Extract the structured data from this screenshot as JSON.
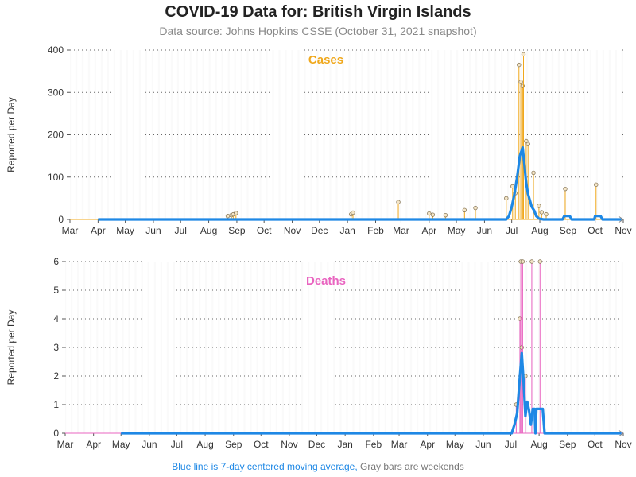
{
  "header": {
    "title": "COVID-19 Data for: British Virgin Islands",
    "subtitle": "Data source: Johns Hopkins CSSE (October 31, 2021 snapshot)"
  },
  "footnote": {
    "blue_text": "Blue line is 7-day centered moving average,",
    "gray_text": "Gray bars are weekends"
  },
  "colors": {
    "cases": "#f0a81c",
    "deaths": "#e964c0",
    "moving_average": "#1e88e5",
    "grid": "#666666"
  },
  "chart_data": [
    {
      "type": "line",
      "title": "Cases",
      "ylabel": "Reported per Day",
      "xlabel": "",
      "x_tick_labels": [
        "Mar",
        "Apr",
        "May",
        "Jun",
        "Jul",
        "Aug",
        "Sep",
        "Oct",
        "Nov",
        "Dec",
        "Jan",
        "Feb",
        "Mar",
        "Apr",
        "May",
        "Jun",
        "Jul",
        "Aug",
        "Sep",
        "Oct",
        "Nov"
      ],
      "y_ticks": [
        0,
        100,
        200,
        300,
        400
      ],
      "xlim": [
        "2020-03-01",
        "2021-11-01"
      ],
      "ylim": [
        0,
        400
      ],
      "grid": "horizontal dotted",
      "series": [
        {
          "kind": "daily",
          "points": [
            [
              "2020-08-22",
              8
            ],
            [
              "2020-08-26",
              10
            ],
            [
              "2020-08-28",
              12
            ],
            [
              "2020-08-31",
              15
            ],
            [
              "2021-01-05",
              12
            ],
            [
              "2021-01-07",
              16
            ],
            [
              "2021-02-26",
              41
            ],
            [
              "2021-04-01",
              14
            ],
            [
              "2021-04-05",
              11
            ],
            [
              "2021-04-19",
              10
            ],
            [
              "2021-05-10",
              22
            ],
            [
              "2021-05-22",
              27
            ],
            [
              "2021-06-25",
              50
            ],
            [
              "2021-07-02",
              78
            ],
            [
              "2021-07-05",
              62
            ],
            [
              "2021-07-09",
              365
            ],
            [
              "2021-07-11",
              325
            ],
            [
              "2021-07-13",
              315
            ],
            [
              "2021-07-14",
              390
            ],
            [
              "2021-07-17",
              185
            ],
            [
              "2021-07-19",
              178
            ],
            [
              "2021-07-25",
              110
            ],
            [
              "2021-07-31",
              32
            ],
            [
              "2021-08-03",
              17
            ],
            [
              "2021-08-08",
              12
            ],
            [
              "2021-08-29",
              72
            ],
            [
              "2021-10-02",
              82
            ]
          ]
        },
        {
          "kind": "moving_average",
          "points": [
            [
              "2020-04-01",
              0
            ],
            [
              "2021-06-25",
              0
            ],
            [
              "2021-06-28",
              8
            ],
            [
              "2021-07-01",
              30
            ],
            [
              "2021-07-04",
              60
            ],
            [
              "2021-07-07",
              100
            ],
            [
              "2021-07-10",
              150
            ],
            [
              "2021-07-13",
              170
            ],
            [
              "2021-07-15",
              130
            ],
            [
              "2021-07-17",
              85
            ],
            [
              "2021-07-19",
              60
            ],
            [
              "2021-07-21",
              45
            ],
            [
              "2021-07-23",
              30
            ],
            [
              "2021-07-26",
              20
            ],
            [
              "2021-07-28",
              8
            ],
            [
              "2021-07-31",
              2
            ],
            [
              "2021-08-05",
              0
            ],
            [
              "2021-08-26",
              0
            ],
            [
              "2021-08-28",
              8
            ],
            [
              "2021-09-03",
              8
            ],
            [
              "2021-09-05",
              0
            ],
            [
              "2021-09-30",
              0
            ],
            [
              "2021-10-01",
              8
            ],
            [
              "2021-10-07",
              8
            ],
            [
              "2021-10-09",
              0
            ],
            [
              "2021-10-30",
              0
            ]
          ]
        }
      ]
    },
    {
      "type": "line",
      "title": "Deaths",
      "ylabel": "Reported per Day",
      "xlabel": "",
      "x_tick_labels": [
        "Mar",
        "Apr",
        "May",
        "Jun",
        "Jul",
        "Aug",
        "Sep",
        "Oct",
        "Nov",
        "Dec",
        "Jan",
        "Feb",
        "Mar",
        "Apr",
        "May",
        "Jun",
        "Jul",
        "Aug",
        "Sep",
        "Oct",
        "Nov"
      ],
      "y_ticks": [
        0,
        1,
        2,
        3,
        4,
        5,
        6
      ],
      "xlim": [
        "2020-03-01",
        "2021-11-01"
      ],
      "ylim": [
        0,
        6
      ],
      "grid": "horizontal dotted",
      "series": [
        {
          "kind": "daily",
          "points": [
            [
              "2021-07-07",
              1
            ],
            [
              "2021-07-11",
              4
            ],
            [
              "2021-07-12",
              6
            ],
            [
              "2021-07-13",
              3
            ],
            [
              "2021-07-14",
              6
            ],
            [
              "2021-07-17",
              2
            ],
            [
              "2021-07-24",
              6
            ],
            [
              "2021-08-02",
              6
            ]
          ]
        },
        {
          "kind": "moving_average",
          "points": [
            [
              "2020-05-01",
              0
            ],
            [
              "2021-07-02",
              0
            ],
            [
              "2021-07-05",
              0.3
            ],
            [
              "2021-07-08",
              0.7
            ],
            [
              "2021-07-11",
              2
            ],
            [
              "2021-07-13",
              2.8
            ],
            [
              "2021-07-15",
              1.8
            ],
            [
              "2021-07-17",
              0.6
            ],
            [
              "2021-07-19",
              1.1
            ],
            [
              "2021-07-21",
              0.8
            ],
            [
              "2021-07-23",
              0.3
            ],
            [
              "2021-07-25",
              0.85
            ],
            [
              "2021-07-27",
              0.85
            ],
            [
              "2021-07-28",
              0
            ],
            [
              "2021-07-29",
              0.85
            ],
            [
              "2021-08-05",
              0.85
            ],
            [
              "2021-08-07",
              0
            ],
            [
              "2021-10-30",
              0
            ]
          ]
        }
      ]
    }
  ]
}
